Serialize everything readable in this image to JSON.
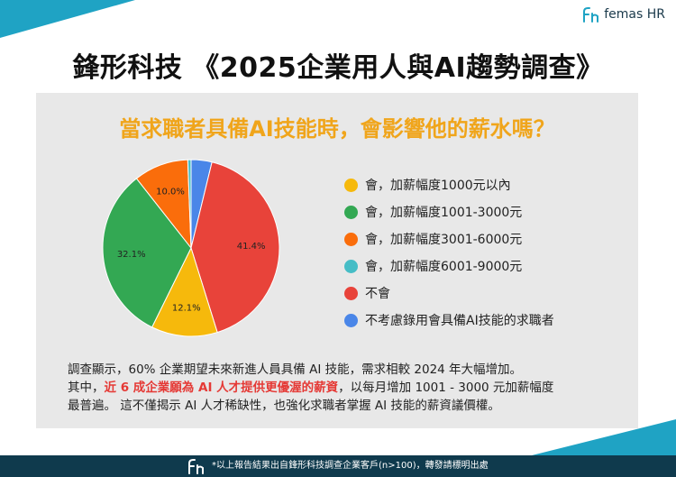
{
  "brand": {
    "name": "femas HR",
    "icon": "femas-logo-icon"
  },
  "main_title": "鋒形科技 《2025企業用人與AI趨勢調查》",
  "chart_data": {
    "type": "pie",
    "title": "當求職者具備AI技能時，會影響他的薪水嗎？",
    "start_angle": 0,
    "slices": [
      {
        "label": "不考慮錄用會具備AI技能的求職者",
        "value": 3.8,
        "color": "#4a86e8",
        "data_label": ""
      },
      {
        "label": "不會",
        "value": 41.4,
        "color": "#e8433a",
        "data_label": "41.4%"
      },
      {
        "label": "會，加薪幅度1000元以內",
        "value": 12.1,
        "color": "#f6b90c",
        "data_label": "12.1%"
      },
      {
        "label": "會，加薪幅度1001-3000元",
        "value": 32.1,
        "color": "#33a853",
        "data_label": "32.1%"
      },
      {
        "label": "會，加薪幅度3001-6000元",
        "value": 10.0,
        "color": "#fa6d0b",
        "data_label": "10.0%"
      },
      {
        "label": "會，加薪幅度6001-9000元",
        "value": 0.6,
        "color": "#46bdc6",
        "data_label": ""
      }
    ],
    "legend": [
      {
        "label": "會，加薪幅度1000元以內",
        "color": "#f6b90c"
      },
      {
        "label": "會，加薪幅度1001-3000元",
        "color": "#33a853"
      },
      {
        "label": "會，加薪幅度3001-6000元",
        "color": "#fa6d0b"
      },
      {
        "label": "會，加薪幅度6001-9000元",
        "color": "#46bdc6"
      },
      {
        "label": "不會",
        "color": "#e8433a"
      },
      {
        "label": "不考慮錄用會具備AI技能的求職者",
        "color": "#4a86e8"
      }
    ],
    "legend_position": "right"
  },
  "summary": {
    "line1": "調查顯示，60% 企業期望未來新進人員具備 AI 技能，需求相較 2024 年大幅增加。",
    "line2_prefix": "其中，",
    "line2_highlight": "近 6 成企業願為 AI 人才提供更優渥的薪資",
    "line2_suffix": "，以每月增加 1001 - 3000 元加薪幅度",
    "line3": "最普遍。 這不僅揭示 AI 人才稀缺性，也強化求職者掌握 AI 技能的薪資議價權。"
  },
  "footer": {
    "icon": "femas-logo-icon",
    "note": "*以上報告結果出自鋒形科技調查企業客戶(n>100)，轉發請標明出處"
  }
}
